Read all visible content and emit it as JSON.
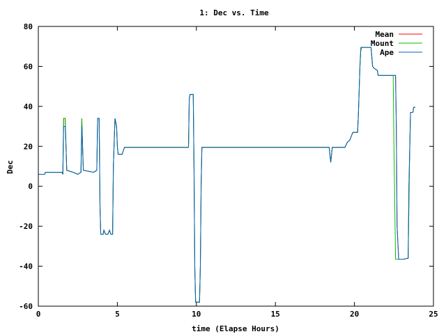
{
  "chart_data": {
    "type": "line",
    "title": "1: Dec vs. Time",
    "xlabel": "time (Elapse Hours)",
    "ylabel": "Dec",
    "xlim": [
      0,
      25
    ],
    "ylim": [
      -60,
      80
    ],
    "xticks": [
      0,
      5,
      10,
      15,
      20,
      25
    ],
    "yticks": [
      -60,
      -40,
      -20,
      0,
      20,
      40,
      60,
      80
    ],
    "grid": false,
    "legend_position": "top-right",
    "series": [
      {
        "name": "Mean",
        "color": "#ff0000",
        "points": [
          [
            0,
            6
          ],
          [
            0.4,
            6
          ],
          [
            0.45,
            7
          ],
          [
            1.5,
            7
          ],
          [
            1.55,
            6
          ],
          [
            1.6,
            34
          ],
          [
            1.7,
            34
          ],
          [
            1.75,
            20
          ],
          [
            1.8,
            8
          ],
          [
            2.2,
            7
          ],
          [
            2.5,
            6
          ],
          [
            2.7,
            7
          ],
          [
            2.75,
            34
          ],
          [
            2.8,
            20
          ],
          [
            2.85,
            8
          ],
          [
            3.5,
            7
          ],
          [
            3.7,
            8
          ],
          [
            3.75,
            34
          ],
          [
            3.85,
            34
          ],
          [
            3.9,
            -10
          ],
          [
            3.95,
            -24
          ],
          [
            4.1,
            -24
          ],
          [
            4.15,
            -22
          ],
          [
            4.25,
            -24
          ],
          [
            4.4,
            -24
          ],
          [
            4.5,
            -22
          ],
          [
            4.6,
            -24
          ],
          [
            4.7,
            -24
          ],
          [
            4.75,
            10
          ],
          [
            4.85,
            34
          ],
          [
            4.95,
            30
          ],
          [
            5.0,
            20
          ],
          [
            5.05,
            16
          ],
          [
            5.3,
            16
          ],
          [
            5.45,
            19.5
          ],
          [
            9.5,
            19.5
          ],
          [
            9.55,
            44
          ],
          [
            9.6,
            46
          ],
          [
            9.8,
            46
          ],
          [
            9.85,
            10
          ],
          [
            9.9,
            -40
          ],
          [
            9.95,
            -58
          ],
          [
            10.2,
            -58
          ],
          [
            10.25,
            -40
          ],
          [
            10.3,
            0
          ],
          [
            10.35,
            19.5
          ],
          [
            18.4,
            19.5
          ],
          [
            18.5,
            12
          ],
          [
            18.6,
            19.5
          ],
          [
            19.4,
            19.5
          ],
          [
            19.55,
            22
          ],
          [
            19.7,
            23
          ],
          [
            19.9,
            27
          ],
          [
            20.2,
            27
          ],
          [
            20.25,
            36
          ],
          [
            20.35,
            60
          ],
          [
            20.4,
            68
          ],
          [
            20.45,
            69.5
          ],
          [
            21.05,
            69.5
          ],
          [
            21.1,
            65
          ],
          [
            21.15,
            60
          ],
          [
            21.25,
            59
          ],
          [
            21.45,
            58
          ],
          [
            21.5,
            55.5
          ],
          [
            22.6,
            55.5
          ],
          [
            22.65,
            30
          ],
          [
            22.7,
            -20
          ],
          [
            22.8,
            -36.5
          ],
          [
            23.1,
            -36.5
          ],
          [
            23.4,
            -36
          ],
          [
            23.45,
            0
          ],
          [
            23.55,
            37
          ],
          [
            23.7,
            37
          ],
          [
            23.75,
            39.5
          ],
          [
            23.85,
            39.5
          ]
        ]
      },
      {
        "name": "Mount",
        "color": "#00c000",
        "points": [
          [
            0,
            6
          ],
          [
            0.4,
            6
          ],
          [
            0.45,
            7
          ],
          [
            1.5,
            7
          ],
          [
            1.55,
            6
          ],
          [
            1.6,
            34
          ],
          [
            1.7,
            34
          ],
          [
            1.75,
            20
          ],
          [
            1.8,
            8
          ],
          [
            2.2,
            7
          ],
          [
            2.5,
            6
          ],
          [
            2.7,
            7
          ],
          [
            2.75,
            34
          ],
          [
            2.8,
            20
          ],
          [
            2.85,
            8
          ],
          [
            3.5,
            7
          ],
          [
            3.7,
            8
          ],
          [
            3.75,
            34
          ],
          [
            3.85,
            34
          ],
          [
            3.9,
            -10
          ],
          [
            3.95,
            -24
          ],
          [
            4.1,
            -24
          ],
          [
            4.15,
            -22
          ],
          [
            4.25,
            -24
          ],
          [
            4.4,
            -24
          ],
          [
            4.5,
            -22
          ],
          [
            4.6,
            -24
          ],
          [
            4.7,
            -24
          ],
          [
            4.75,
            10
          ],
          [
            4.85,
            34
          ],
          [
            4.95,
            30
          ],
          [
            5.0,
            20
          ],
          [
            5.05,
            16
          ],
          [
            5.3,
            16
          ],
          [
            5.45,
            19.5
          ],
          [
            9.5,
            19.5
          ],
          [
            9.55,
            44
          ],
          [
            9.6,
            46
          ],
          [
            9.8,
            46
          ],
          [
            9.85,
            10
          ],
          [
            9.9,
            -40
          ],
          [
            9.95,
            -58
          ],
          [
            10.2,
            -58
          ],
          [
            10.25,
            -40
          ],
          [
            10.3,
            0
          ],
          [
            10.35,
            19.5
          ],
          [
            18.4,
            19.5
          ],
          [
            18.5,
            12
          ],
          [
            18.6,
            19.5
          ],
          [
            19.4,
            19.5
          ],
          [
            19.55,
            22
          ],
          [
            19.7,
            23
          ],
          [
            19.9,
            27
          ],
          [
            20.2,
            27
          ],
          [
            20.25,
            36
          ],
          [
            20.35,
            60
          ],
          [
            20.4,
            69.5
          ],
          [
            21.05,
            69.5
          ],
          [
            21.1,
            65
          ],
          [
            21.15,
            60
          ],
          [
            21.25,
            59
          ],
          [
            21.45,
            58
          ],
          [
            21.5,
            55.5
          ],
          [
            22.45,
            55.5
          ],
          [
            22.5,
            20
          ],
          [
            22.6,
            -36.5
          ],
          [
            23.1,
            -36.5
          ],
          [
            23.4,
            -36
          ],
          [
            23.45,
            -10
          ],
          [
            23.5,
            20
          ],
          [
            23.55,
            37
          ],
          [
            23.7,
            37
          ],
          [
            23.75,
            39.5
          ],
          [
            23.85,
            39.5
          ]
        ]
      },
      {
        "name": "Ape",
        "color": "#0060c0",
        "points": [
          [
            0,
            6
          ],
          [
            0.4,
            6
          ],
          [
            0.45,
            7
          ],
          [
            1.5,
            7
          ],
          [
            1.55,
            6
          ],
          [
            1.6,
            30
          ],
          [
            1.7,
            30
          ],
          [
            1.75,
            20
          ],
          [
            1.8,
            8
          ],
          [
            2.2,
            7
          ],
          [
            2.5,
            6
          ],
          [
            2.7,
            7
          ],
          [
            2.75,
            30
          ],
          [
            2.8,
            20
          ],
          [
            2.85,
            8
          ],
          [
            3.5,
            7
          ],
          [
            3.7,
            8
          ],
          [
            3.75,
            34
          ],
          [
            3.85,
            34
          ],
          [
            3.9,
            -10
          ],
          [
            3.95,
            -24
          ],
          [
            4.1,
            -24
          ],
          [
            4.15,
            -22
          ],
          [
            4.25,
            -24
          ],
          [
            4.4,
            -24
          ],
          [
            4.5,
            -22
          ],
          [
            4.6,
            -24
          ],
          [
            4.7,
            -24
          ],
          [
            4.75,
            10
          ],
          [
            4.85,
            34
          ],
          [
            4.95,
            30
          ],
          [
            5.0,
            20
          ],
          [
            5.05,
            16
          ],
          [
            5.3,
            16
          ],
          [
            5.45,
            19.5
          ],
          [
            9.5,
            19.5
          ],
          [
            9.55,
            44
          ],
          [
            9.6,
            46
          ],
          [
            9.8,
            46
          ],
          [
            9.85,
            10
          ],
          [
            9.9,
            -40
          ],
          [
            9.95,
            -58
          ],
          [
            10.2,
            -58
          ],
          [
            10.25,
            -40
          ],
          [
            10.3,
            0
          ],
          [
            10.35,
            19.5
          ],
          [
            18.4,
            19.5
          ],
          [
            18.5,
            12
          ],
          [
            18.6,
            19.5
          ],
          [
            19.4,
            19.5
          ],
          [
            19.55,
            22
          ],
          [
            19.7,
            23
          ],
          [
            19.9,
            27
          ],
          [
            20.2,
            27
          ],
          [
            20.25,
            36
          ],
          [
            20.35,
            60
          ],
          [
            20.4,
            68
          ],
          [
            20.45,
            69.5
          ],
          [
            21.05,
            69.5
          ],
          [
            21.1,
            65
          ],
          [
            21.15,
            60
          ],
          [
            21.25,
            59
          ],
          [
            21.45,
            58
          ],
          [
            21.5,
            55.5
          ],
          [
            22.6,
            55.5
          ],
          [
            22.65,
            30
          ],
          [
            22.7,
            -20
          ],
          [
            22.8,
            -36.5
          ],
          [
            23.1,
            -36.5
          ],
          [
            23.4,
            -36
          ],
          [
            23.45,
            0
          ],
          [
            23.55,
            37
          ],
          [
            23.7,
            37
          ],
          [
            23.75,
            39.5
          ],
          [
            23.85,
            39.5
          ]
        ]
      }
    ]
  }
}
